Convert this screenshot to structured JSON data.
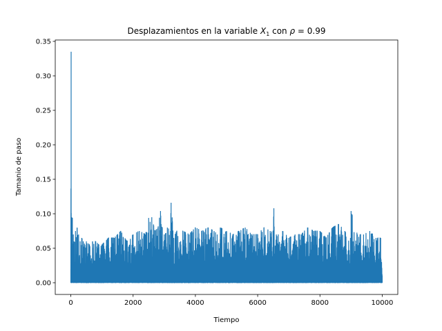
{
  "chart_data": {
    "type": "line",
    "title_main": "Desplazamientos en la variable ",
    "title_var": "X",
    "title_sub": "1",
    "title_mid": " con ",
    "title_rho": "ρ",
    "title_eq": " = 0.99",
    "xlabel": "Tiempo",
    "ylabel": "Tamanio de paso",
    "xlim": [
      -500,
      10500
    ],
    "ylim": [
      -0.017,
      0.352
    ],
    "xticks": [
      0,
      2000,
      4000,
      6000,
      8000,
      10000
    ],
    "xtick_labels": [
      "0",
      "2000",
      "4000",
      "6000",
      "8000",
      "10000"
    ],
    "yticks": [
      0.0,
      0.05,
      0.1,
      0.15,
      0.2,
      0.25,
      0.3,
      0.35
    ],
    "ytick_labels": [
      "0.00",
      "0.05",
      "0.10",
      "0.15",
      "0.20",
      "0.25",
      "0.30",
      "0.35"
    ],
    "grid": false,
    "color": "#1f77b4",
    "series": [
      {
        "x": [
          0,
          10,
          20,
          30,
          40,
          50,
          60,
          80,
          100,
          150,
          200,
          250,
          300,
          350,
          400,
          450,
          500,
          600,
          700,
          800,
          900,
          1000,
          1200,
          1400,
          1600,
          1800,
          2000,
          2200,
          2400,
          2500,
          2600,
          2700,
          2800,
          2880,
          2900,
          3000,
          3100,
          3200,
          3220,
          3300,
          3400,
          3600,
          3800,
          4000,
          4200,
          4400,
          4600,
          4700,
          4800,
          5000,
          5200,
          5400,
          5600,
          5800,
          6000,
          6200,
          6400,
          6500,
          6520,
          6600,
          6800,
          7000,
          7200,
          7400,
          7600,
          7800,
          8000,
          8200,
          8400,
          8600,
          8800,
          8980,
          9000,
          9200,
          9400,
          9600,
          9800,
          9950,
          10000
        ],
        "y": [
          0.02,
          0.335,
          0.06,
          0.095,
          0.05,
          0.094,
          0.04,
          0.07,
          0.06,
          0.075,
          0.08,
          0.07,
          0.06,
          0.065,
          0.06,
          0.055,
          0.06,
          0.055,
          0.06,
          0.06,
          0.055,
          0.055,
          0.065,
          0.065,
          0.075,
          0.06,
          0.07,
          0.075,
          0.07,
          0.094,
          0.095,
          0.075,
          0.08,
          0.104,
          0.085,
          0.07,
          0.08,
          0.075,
          0.116,
          0.065,
          0.075,
          0.075,
          0.07,
          0.08,
          0.075,
          0.08,
          0.075,
          0.07,
          0.08,
          0.075,
          0.07,
          0.075,
          0.08,
          0.07,
          0.07,
          0.08,
          0.075,
          0.075,
          0.108,
          0.07,
          0.075,
          0.065,
          0.07,
          0.07,
          0.08,
          0.075,
          0.075,
          0.065,
          0.08,
          0.085,
          0.075,
          0.065,
          0.104,
          0.07,
          0.07,
          0.075,
          0.065,
          0.065,
          0.01
        ]
      }
    ]
  }
}
